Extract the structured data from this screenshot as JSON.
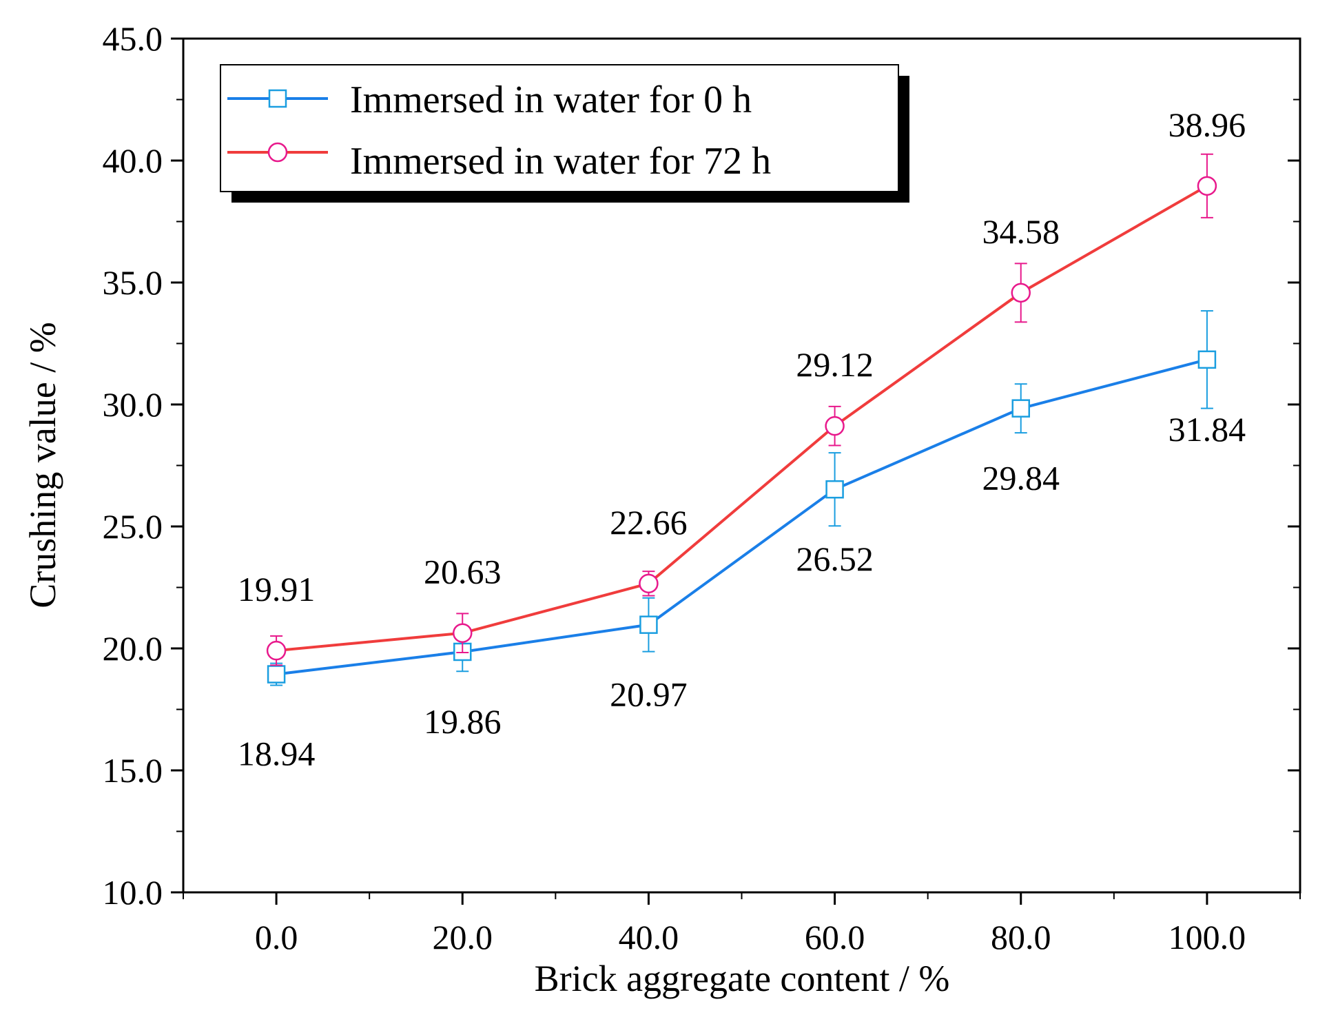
{
  "chart_data": {
    "type": "line",
    "xlabel": "Brick aggregate content / %",
    "ylabel": "Crushing value / %",
    "xlim": [
      -10,
      110
    ],
    "ylim": [
      10,
      45
    ],
    "x": [
      0,
      20,
      40,
      60,
      80,
      100
    ],
    "x_tick_labels": [
      "0.0",
      "20.0",
      "40.0",
      "60.0",
      "80.0",
      "100.0"
    ],
    "y_tick_values": [
      10,
      15,
      20,
      25,
      30,
      35,
      40,
      45
    ],
    "y_tick_labels": [
      "10.0",
      "15.0",
      "20.0",
      "25.0",
      "30.0",
      "35.0",
      "40.0",
      "45.0"
    ],
    "grid": false,
    "legend_position": "top-left",
    "series": [
      {
        "name": "Immersed in water for 0 h",
        "marker": "square",
        "line_color": "#1a7fe8",
        "marker_color": "#1a9ee0",
        "values": [
          18.94,
          19.86,
          20.97,
          26.52,
          29.84,
          31.84
        ],
        "error": [
          0.45,
          0.8,
          1.1,
          1.5,
          1.0,
          2.0
        ],
        "labels": [
          "18.94",
          "19.86",
          "20.97",
          "26.52",
          "29.84",
          "31.84"
        ],
        "label_side": "below"
      },
      {
        "name": "Immersed in water for 72 h",
        "marker": "circle",
        "line_color": "#f03c3c",
        "marker_color": "#e8198c",
        "values": [
          19.91,
          20.63,
          22.66,
          29.12,
          34.58,
          38.96
        ],
        "error": [
          0.6,
          0.8,
          0.5,
          0.8,
          1.2,
          1.3
        ],
        "labels": [
          "19.91",
          "20.63",
          "22.66",
          "29.12",
          "34.58",
          "38.96"
        ],
        "label_side": "above"
      }
    ]
  }
}
